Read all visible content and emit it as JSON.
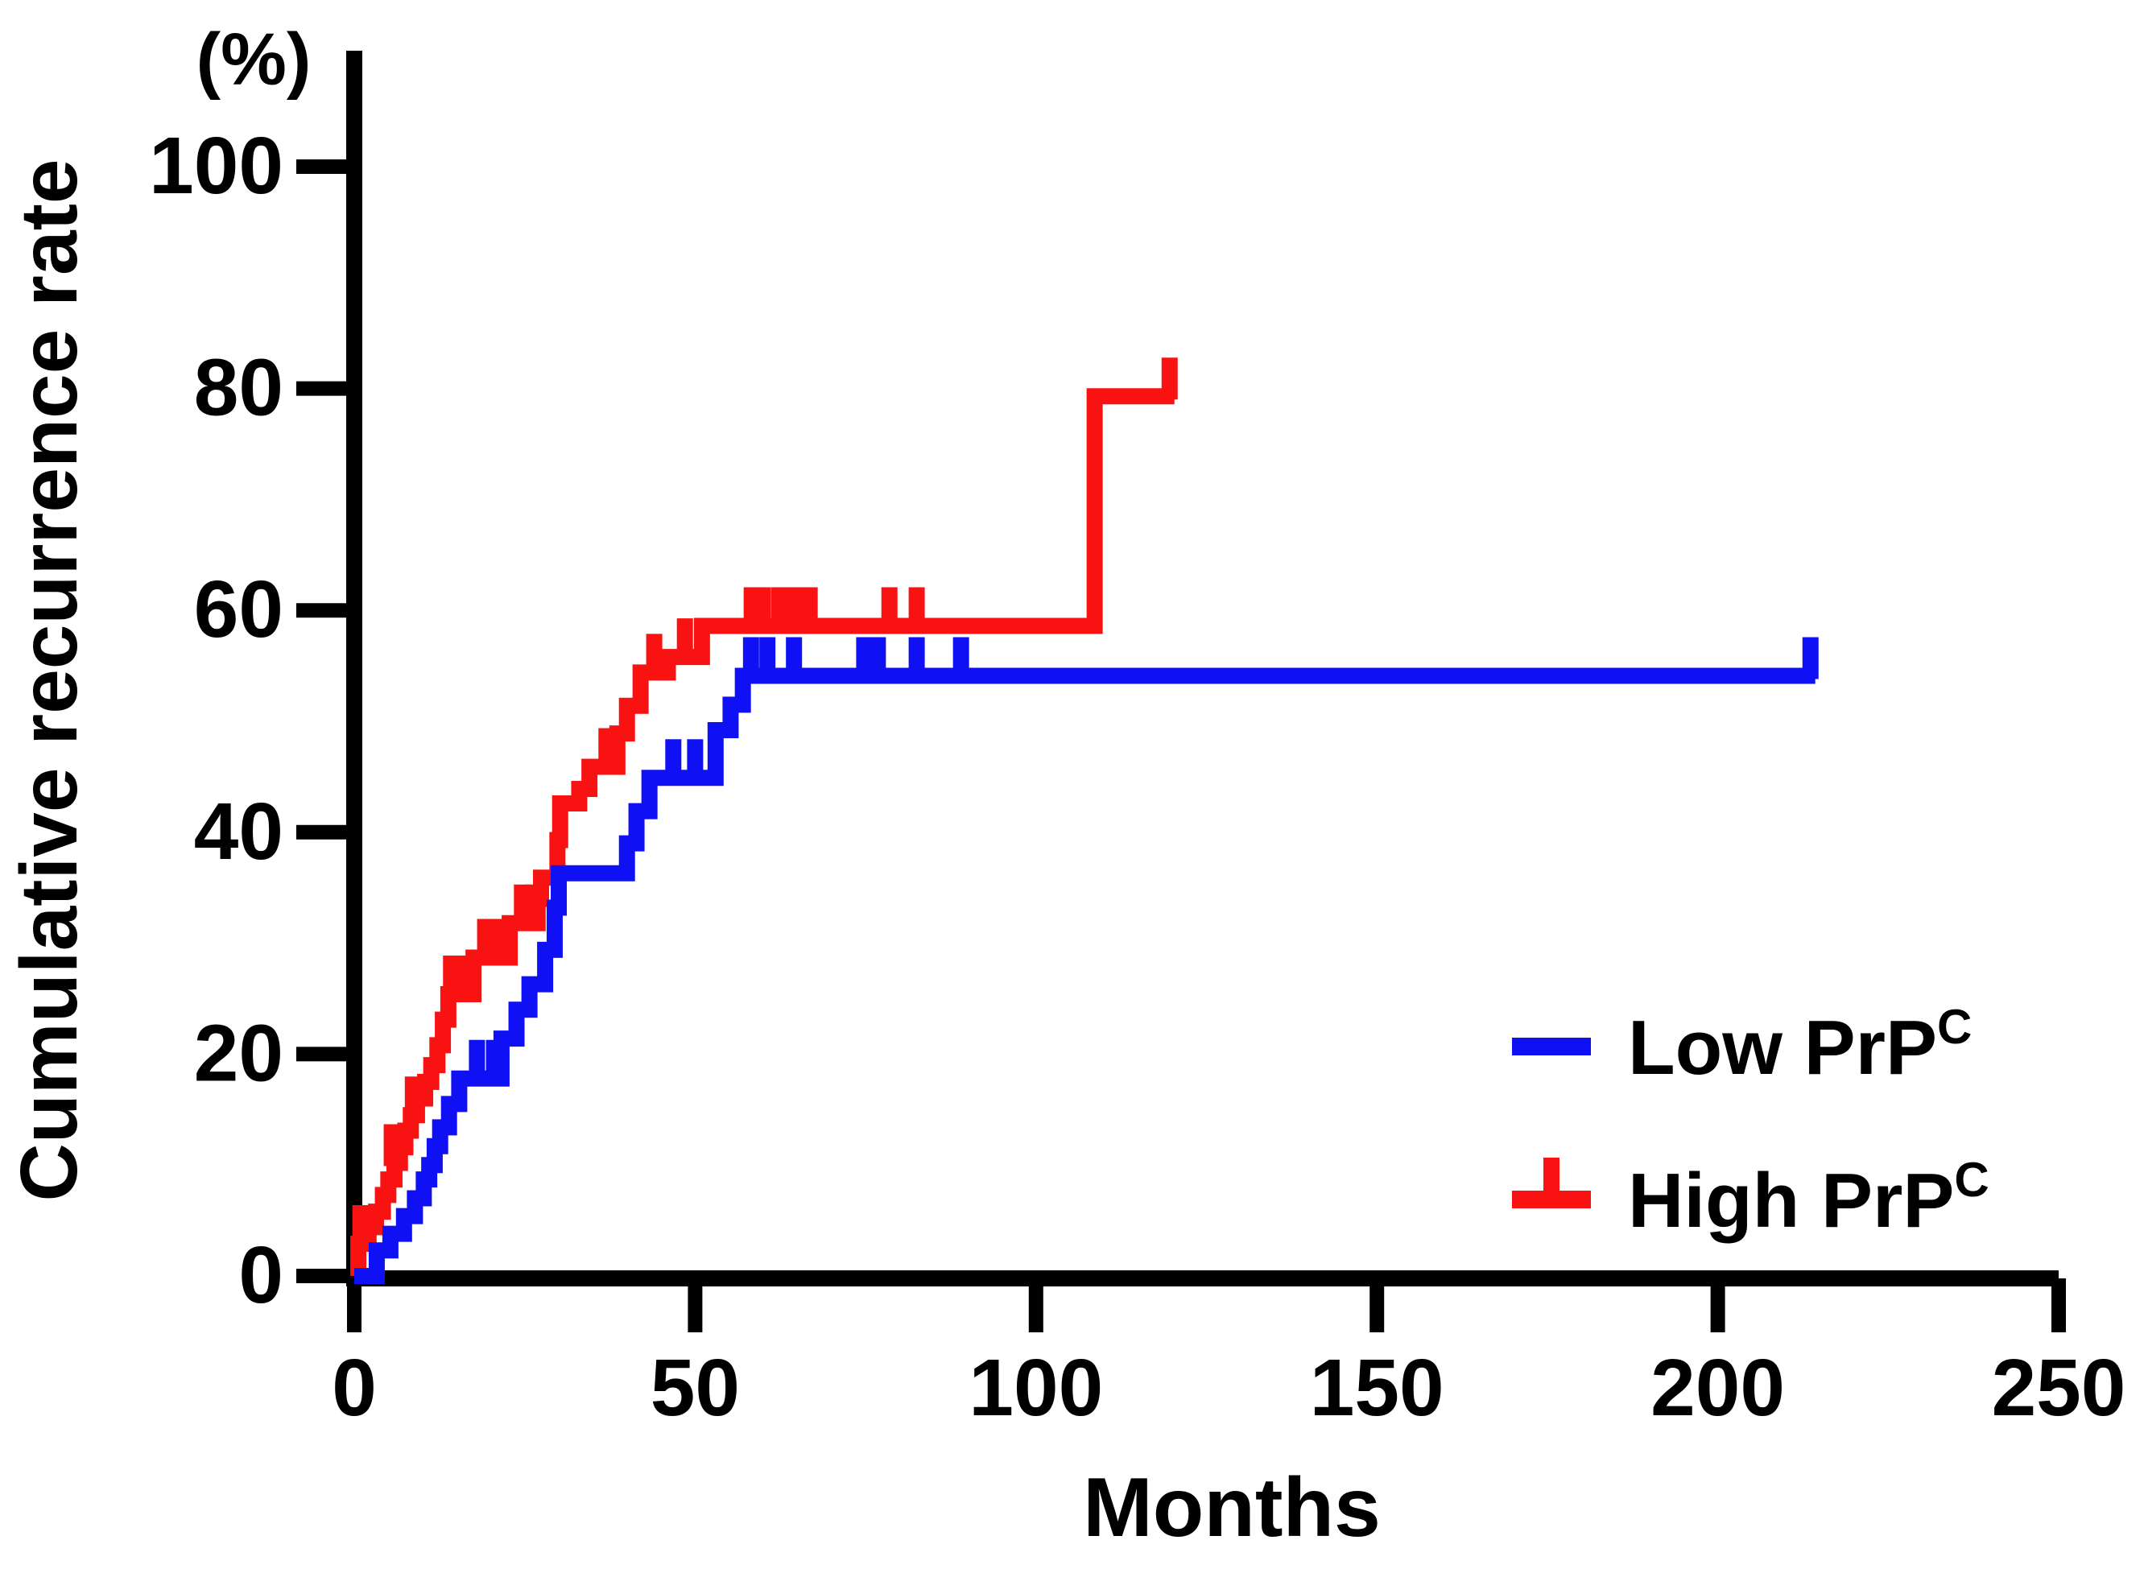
{
  "colors": {
    "low_prpc": "#1010f5",
    "high_prpc": "#f81212",
    "axis": "#000000",
    "background": "#ffffff"
  },
  "chart_data": {
    "type": "line",
    "subtype": "kaplan-meier-step",
    "title": "",
    "xlabel": "Months",
    "ylabel": "Cumulative recurrence rate",
    "ylabel_unit": "(%)",
    "xlim": [
      0,
      250
    ],
    "ylim": [
      0,
      100
    ],
    "x_ticks": [
      0,
      50,
      100,
      150,
      200,
      250
    ],
    "y_ticks": [
      0,
      20,
      40,
      60,
      80,
      100
    ],
    "grid": false,
    "legend_position": "bottom-right",
    "legend": [
      {
        "label": "Low PrP",
        "label_sup": "C",
        "series_key": "low"
      },
      {
        "label": "High PrP",
        "label_sup": "C",
        "series_key": "high"
      }
    ],
    "series": [
      {
        "key": "low",
        "name": "Low PrP C",
        "color_key": "low_prpc",
        "steps": [
          [
            0,
            0
          ],
          [
            3.3,
            2.3
          ],
          [
            5.3,
            3.8
          ],
          [
            7.3,
            5.4
          ],
          [
            8.9,
            7.0
          ],
          [
            10.2,
            8.7
          ],
          [
            11.0,
            10.0
          ],
          [
            11.8,
            11.7
          ],
          [
            12.6,
            13.4
          ],
          [
            13.9,
            15.5
          ],
          [
            15.4,
            17.8
          ],
          [
            21.6,
            21.4
          ],
          [
            23.8,
            24.0
          ],
          [
            25.7,
            26.3
          ],
          [
            28.0,
            29.4
          ],
          [
            29.4,
            33.2
          ],
          [
            30.0,
            36.3
          ],
          [
            40.0,
            39.0
          ],
          [
            41.4,
            41.9
          ],
          [
            43.3,
            44.9
          ],
          [
            53.0,
            49.2
          ],
          [
            55.2,
            51.5
          ],
          [
            57.0,
            54.1
          ],
          [
            214.3,
            54.1
          ]
        ],
        "censor_ticks": [
          [
            18.0,
            17.8
          ],
          [
            20.5,
            17.8
          ],
          [
            46.8,
            44.9
          ],
          [
            50.0,
            44.9
          ],
          [
            58.2,
            54.1
          ],
          [
            60.6,
            54.1
          ],
          [
            64.5,
            54.1
          ],
          [
            74.8,
            54.1
          ],
          [
            76.8,
            54.1
          ],
          [
            82.5,
            54.1
          ],
          [
            89.0,
            54.1
          ],
          [
            213.6,
            54.1
          ]
        ]
      },
      {
        "key": "high",
        "name": "High PrP C",
        "color_key": "high_prpc",
        "steps": [
          [
            0,
            0
          ],
          [
            0.6,
            2.9
          ],
          [
            2.1,
            4.4
          ],
          [
            3.2,
            5.8
          ],
          [
            4.2,
            7.3
          ],
          [
            5.0,
            8.7
          ],
          [
            5.9,
            10.2
          ],
          [
            6.7,
            11.6
          ],
          [
            7.5,
            13.1
          ],
          [
            8.3,
            14.5
          ],
          [
            9.2,
            16.0
          ],
          [
            10.4,
            17.5
          ],
          [
            11.3,
            19.0
          ],
          [
            12.2,
            20.8
          ],
          [
            13.0,
            23.1
          ],
          [
            13.8,
            25.4
          ],
          [
            17.5,
            28.7
          ],
          [
            22.8,
            31.8
          ],
          [
            26.9,
            34.0
          ],
          [
            27.4,
            35.9
          ],
          [
            29.8,
            39.3
          ],
          [
            30.2,
            42.6
          ],
          [
            33.0,
            43.9
          ],
          [
            34.5,
            45.9
          ],
          [
            38.6,
            48.9
          ],
          [
            40.0,
            51.4
          ],
          [
            42.0,
            54.4
          ],
          [
            46.0,
            55.8
          ],
          [
            51.0,
            58.6
          ],
          [
            108.6,
            79.3
          ],
          [
            120.3,
            79.3
          ]
        ],
        "censor_ticks": [
          [
            0.9,
            2.9
          ],
          [
            5.5,
            10.2
          ],
          [
            8.6,
            14.5
          ],
          [
            14.2,
            25.4
          ],
          [
            16.0,
            25.4
          ],
          [
            19.2,
            28.7
          ],
          [
            21.3,
            28.7
          ],
          [
            24.6,
            31.8
          ],
          [
            26.2,
            31.8
          ],
          [
            37.0,
            45.9
          ],
          [
            44.0,
            54.4
          ],
          [
            48.5,
            55.8
          ],
          [
            58.3,
            58.6
          ],
          [
            59.9,
            58.6
          ],
          [
            62.3,
            58.6
          ],
          [
            64.5,
            58.6
          ],
          [
            66.8,
            58.6
          ],
          [
            78.5,
            58.6
          ],
          [
            82.5,
            58.6
          ],
          [
            119.6,
            79.3
          ]
        ]
      }
    ]
  }
}
